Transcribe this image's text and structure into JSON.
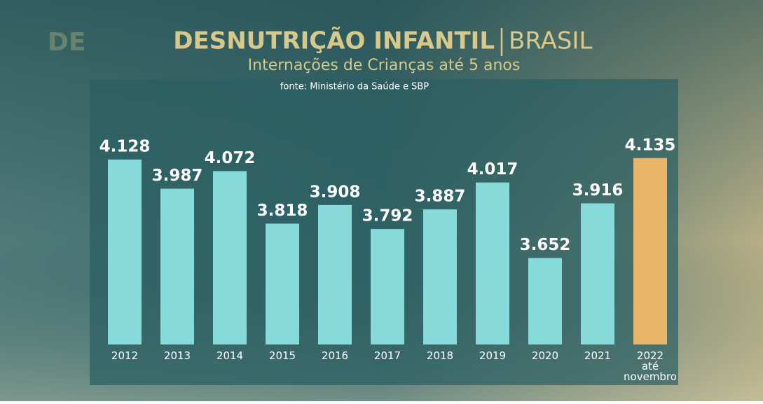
{
  "chart_data": {
    "type": "bar",
    "background_text": "DE",
    "title": "DESNUTRIÇÃO INFANTIL",
    "title_suffix": "BRASIL",
    "subtitle": "Internações de Crianças até 5 anos",
    "source": "fonte: Ministério da Saúde e SBP",
    "categories": [
      "2012",
      "2013",
      "2014",
      "2015",
      "2016",
      "2017",
      "2018",
      "2019",
      "2020",
      "2021",
      "2022 até novembro"
    ],
    "values": [
      4128,
      3987,
      4072,
      3818,
      3908,
      3792,
      3887,
      4017,
      3652,
      3916,
      4135
    ],
    "value_labels": [
      "4.128",
      "3.987",
      "4.072",
      "3.818",
      "3.908",
      "3.792",
      "3.887",
      "4.017",
      "3.652",
      "3.916",
      "4.135"
    ],
    "colors": [
      "#86dada",
      "#86dada",
      "#86dada",
      "#86dada",
      "#86dada",
      "#86dada",
      "#86dada",
      "#86dada",
      "#86dada",
      "#86dada",
      "#e7b66a"
    ],
    "ylim": [
      3234,
      4300
    ]
  }
}
